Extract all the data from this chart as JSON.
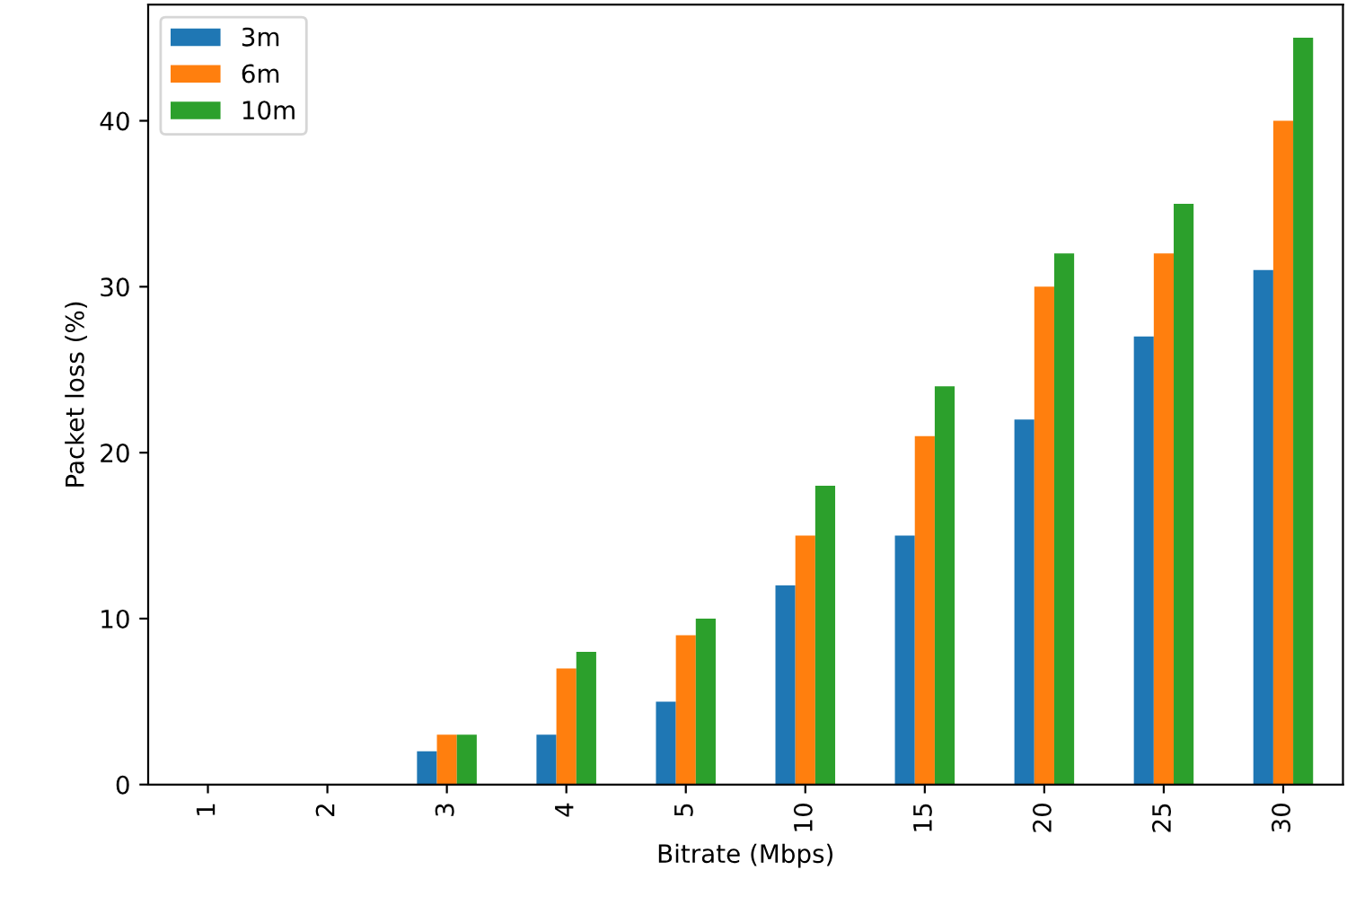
{
  "chart_data": {
    "type": "bar",
    "xlabel": "Bitrate (Mbps)",
    "ylabel": "Packet loss (%)",
    "categories": [
      "1",
      "2",
      "3",
      "4",
      "5",
      "10",
      "15",
      "20",
      "25",
      "30"
    ],
    "series": [
      {
        "name": "3m",
        "color": "#1f77b4",
        "values": [
          0,
          0,
          2,
          3,
          5,
          12,
          15,
          22,
          27,
          31
        ]
      },
      {
        "name": "6m",
        "color": "#ff7f0e",
        "values": [
          0,
          0,
          3,
          7,
          9,
          15,
          21,
          30,
          32,
          40
        ]
      },
      {
        "name": "10m",
        "color": "#2ca02c",
        "values": [
          0,
          0,
          3,
          8,
          10,
          18,
          24,
          32,
          35,
          45
        ]
      }
    ],
    "ylim": [
      0,
      47
    ],
    "yticks": [
      0,
      10,
      20,
      30,
      40
    ],
    "legend": "top left",
    "grid": false
  }
}
